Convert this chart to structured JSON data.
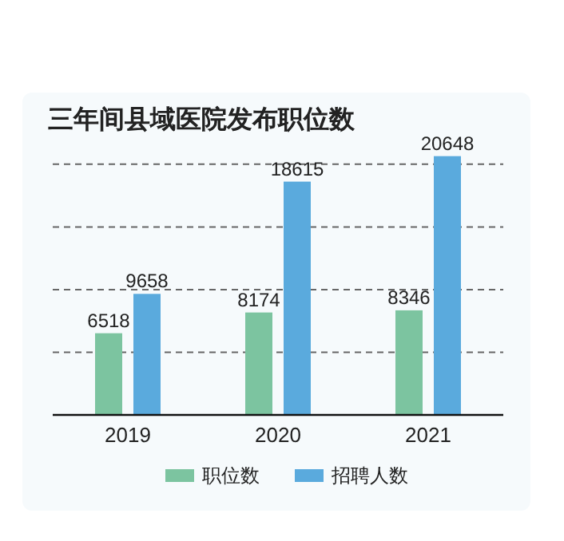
{
  "chart_data": {
    "type": "bar",
    "title": "三年间县域医院发布职位数",
    "categories": [
      "2019",
      "2020",
      "2021"
    ],
    "series": [
      {
        "name": "职位数",
        "color": "#7cc4a0",
        "values": [
          6518,
          8174,
          8346
        ]
      },
      {
        "name": "招聘人数",
        "color": "#5aaadd",
        "values": [
          9658,
          18615,
          20648
        ]
      }
    ],
    "yticks": [
      {
        "value": 5000,
        "label": null
      },
      {
        "value": 10000,
        "label": null
      },
      {
        "value": 15000,
        "label": null
      },
      {
        "value": 20000,
        "label": null
      }
    ],
    "tick_labels": "x",
    "grid": "y",
    "line_style": "dashed",
    "legend": "bottom",
    "data_labels": true
  }
}
